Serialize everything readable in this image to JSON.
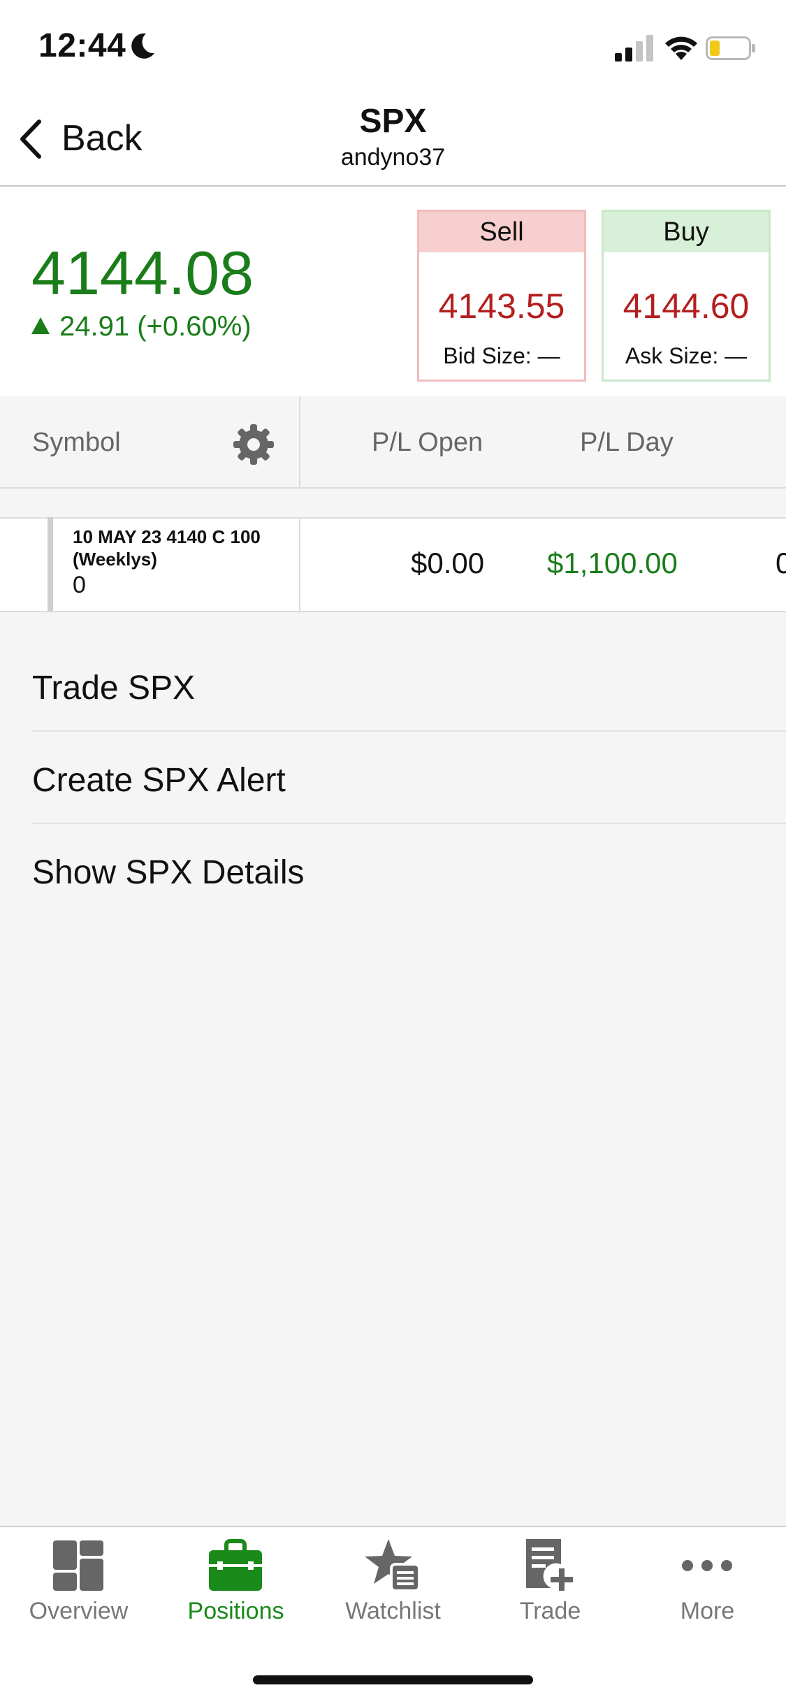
{
  "status_bar": {
    "time": "12:44"
  },
  "nav": {
    "back_label": "Back",
    "title": "SPX",
    "subtitle": "andyno37"
  },
  "quote": {
    "last": "4144.08",
    "change": "24.91 (+0.60%)",
    "sell": {
      "label": "Sell",
      "price": "4143.55",
      "size": "Bid Size: —"
    },
    "buy": {
      "label": "Buy",
      "price": "4144.60",
      "size": "Ask Size: —"
    }
  },
  "table": {
    "headers": {
      "symbol": "Symbol",
      "pl_open": "P/L Open",
      "pl_day": "P/L Day"
    },
    "rows": [
      {
        "description": "10 MAY 23 4140 C 100 (Weeklys)",
        "quantity": "0",
        "pl_open": "$0.00",
        "pl_day": "$1,100.00",
        "clipped": "0"
      }
    ]
  },
  "actions": [
    "Trade SPX",
    "Create SPX Alert",
    "Show SPX Details"
  ],
  "tabs": [
    {
      "label": "Overview",
      "icon": "overview-icon"
    },
    {
      "label": "Positions",
      "icon": "briefcase-icon",
      "active": true
    },
    {
      "label": "Watchlist",
      "icon": "watchlist-icon"
    },
    {
      "label": "Trade",
      "icon": "trade-icon"
    },
    {
      "label": "More",
      "icon": "more-icon"
    }
  ],
  "colors": {
    "positive": "#1a7d1a",
    "price_red": "#b41f1f",
    "sell_bg": "#f7cfcf",
    "buy_bg": "#d8efd8",
    "active_tab": "#1a8a1a"
  }
}
